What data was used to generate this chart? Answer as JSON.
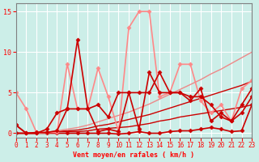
{
  "title": "",
  "xlabel": "Vent moyen/en rafales ( km/h )",
  "ylabel": "",
  "xlim": [
    0,
    23
  ],
  "ylim": [
    -0.5,
    16
  ],
  "yticks": [
    0,
    5,
    10,
    15
  ],
  "xticks": [
    0,
    1,
    2,
    3,
    4,
    5,
    6,
    7,
    8,
    9,
    10,
    11,
    12,
    13,
    14,
    15,
    16,
    17,
    18,
    19,
    20,
    21,
    22,
    23
  ],
  "background_color": "#cceee8",
  "grid_color": "#ffffff",
  "lines": [
    {
      "x": [
        0,
        1,
        2,
        3,
        4,
        5,
        6,
        7,
        8,
        9,
        10,
        11,
        12,
        13,
        14,
        15,
        16,
        17,
        18,
        19,
        20,
        21,
        22,
        23
      ],
      "y": [
        1,
        0,
        0,
        0,
        0,
        0,
        0,
        0,
        0,
        0,
        -0.1,
        0,
        0.2,
        0,
        0,
        0.2,
        0.3,
        0.3,
        0.5,
        0.7,
        0.5,
        0.2,
        0.3,
        3.5
      ],
      "color": "#cc0000",
      "lw": 1.2,
      "marker": "D",
      "markersize": 2.5
    },
    {
      "x": [
        0,
        1,
        2,
        3,
        4,
        5,
        6,
        7,
        8,
        9,
        10,
        11,
        12,
        13,
        14,
        15,
        16,
        17,
        18,
        19,
        20,
        21,
        22,
        23
      ],
      "y": [
        0,
        0,
        0,
        0.1,
        0.2,
        0.2,
        0.2,
        0.3,
        0.5,
        0.6,
        0.7,
        0.8,
        1.0,
        1.2,
        1.5,
        1.7,
        2.0,
        2.2,
        2.4,
        2.6,
        2.8,
        3.0,
        3.2,
        3.5
      ],
      "color": "#cc0000",
      "lw": 1.0,
      "marker": null,
      "markersize": 0
    },
    {
      "x": [
        0,
        1,
        2,
        3,
        4,
        5,
        6,
        7,
        8,
        9,
        10,
        11,
        12,
        13,
        14,
        15,
        16,
        17,
        18,
        19,
        20,
        21,
        22,
        23
      ],
      "y": [
        0,
        0,
        0,
        0.1,
        0.2,
        0.3,
        0.4,
        0.6,
        0.9,
        1.1,
        1.4,
        1.7,
        2.0,
        2.3,
        2.7,
        3.1,
        3.5,
        3.9,
        4.3,
        4.7,
        5.1,
        5.5,
        5.9,
        6.4
      ],
      "color": "#cc0000",
      "lw": 1.0,
      "marker": null,
      "markersize": 0
    },
    {
      "x": [
        0,
        1,
        2,
        3,
        4,
        5,
        6,
        7,
        8,
        9,
        10,
        11,
        12,
        13,
        14,
        15,
        16,
        17,
        18,
        19,
        20,
        21,
        22,
        23
      ],
      "y": [
        0,
        0,
        0,
        0.1,
        0.3,
        0.5,
        0.7,
        1.0,
        1.4,
        1.8,
        2.2,
        2.6,
        3.1,
        3.6,
        4.2,
        4.8,
        5.4,
        6.0,
        6.6,
        7.3,
        7.9,
        8.6,
        9.3,
        10.0
      ],
      "color": "#ee8888",
      "lw": 1.0,
      "marker": null,
      "markersize": 0
    },
    {
      "x": [
        0,
        1,
        2,
        3,
        4,
        5,
        6,
        7,
        8,
        9,
        10,
        11,
        12,
        13,
        14,
        15,
        16,
        17,
        18,
        19,
        20,
        21,
        22,
        23
      ],
      "y": [
        5.0,
        3.0,
        0.1,
        0.1,
        0.1,
        8.5,
        3.0,
        3.0,
        8.0,
        4.5,
        0.2,
        13.0,
        15.0,
        15.0,
        4.5,
        5.0,
        8.5,
        8.5,
        4.0,
        2.5,
        3.5,
        1.5,
        5.5,
        6.5
      ],
      "color": "#ff8888",
      "lw": 1.2,
      "marker": "D",
      "markersize": 2.5
    },
    {
      "x": [
        0,
        1,
        2,
        3,
        4,
        5,
        6,
        7,
        8,
        9,
        10,
        11,
        12,
        13,
        14,
        15,
        16,
        17,
        18,
        19,
        20,
        21,
        22,
        23
      ],
      "y": [
        1.0,
        0.0,
        0.1,
        0.1,
        0.3,
        3.0,
        11.5,
        3.0,
        3.5,
        2.0,
        5.0,
        5.0,
        5.0,
        5.0,
        7.5,
        5.0,
        5.0,
        4.0,
        5.5,
        1.5,
        2.5,
        1.5,
        2.5,
        4.5
      ],
      "color": "#cc0000",
      "lw": 1.2,
      "marker": "D",
      "markersize": 2.5
    },
    {
      "x": [
        0,
        1,
        2,
        3,
        4,
        5,
        6,
        7,
        8,
        9,
        10,
        11,
        12,
        13,
        14,
        15,
        16,
        17,
        18,
        19,
        20,
        21,
        22,
        23
      ],
      "y": [
        0,
        0,
        0,
        0.5,
        2.5,
        3.0,
        3.0,
        3.0,
        0.2,
        0.5,
        0.2,
        5.0,
        0.5,
        7.5,
        5.0,
        5.0,
        5.0,
        4.5,
        4.5,
        3.5,
        2.0,
        1.5,
        3.5,
        5.5
      ],
      "color": "#cc0000",
      "lw": 1.2,
      "marker": "D",
      "markersize": 2.5
    }
  ]
}
